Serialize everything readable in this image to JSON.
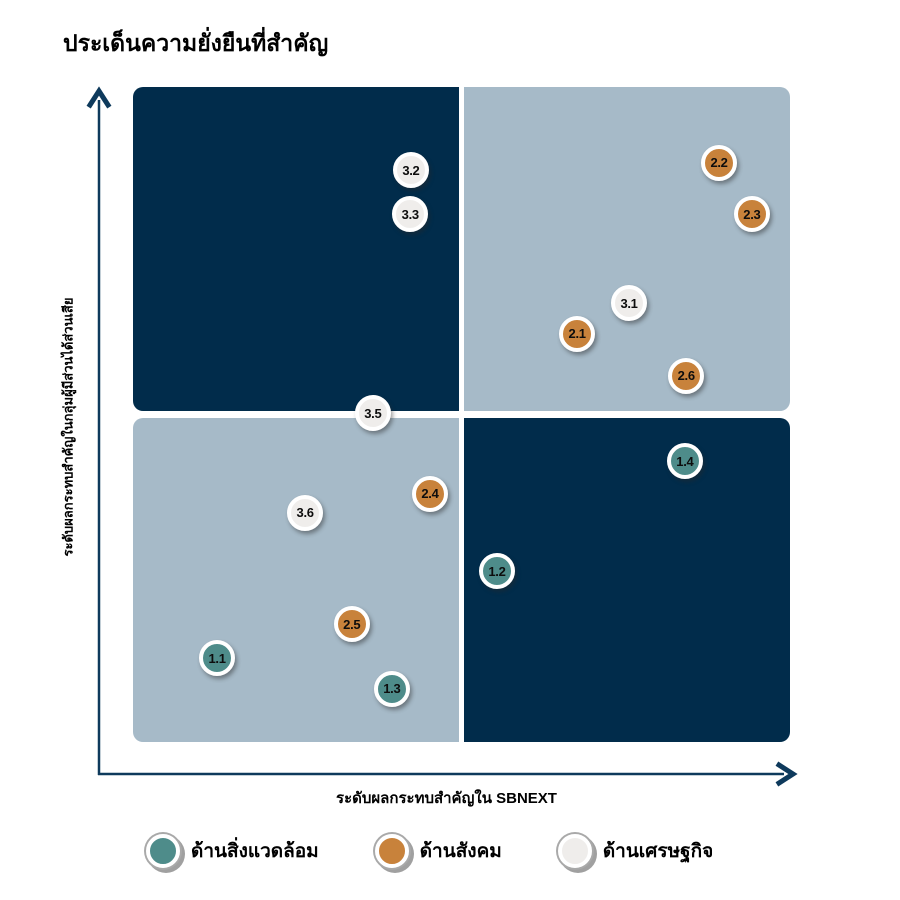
{
  "title": "ประเด็นความยั่งยืนที่สำคัญ",
  "x_axis_label": "ระดับผลกระทบสำคัญใน SBNEXT",
  "y_axis_label": "ระดับผลกระทบสำคัญในกลุ่มผู้มีส่วนได้ส่วนเสีย",
  "colors": {
    "quadrant_dark": "#012c4b",
    "quadrant_light": "#a6bac8",
    "axis": "#0e3a5c",
    "environment": "#4e8c8a",
    "social": "#c8823b",
    "economic": "#efedeb",
    "point_border": "#ffffff",
    "legend_ring": "#a9a9a9"
  },
  "legend": [
    {
      "key": "environment",
      "label": "ด้านสิ่งแวดล้อม"
    },
    {
      "key": "social",
      "label": "ด้านสังคม"
    },
    {
      "key": "economic",
      "label": "ด้านเศรษฐกิจ"
    }
  ],
  "chart_data": {
    "type": "scatter",
    "title": "ประเด็นความยั่งยืนที่สำคัญ",
    "xlabel": "ระดับผลกระทบสำคัญใน SBNEXT",
    "ylabel": "ระดับผลกระทบสำคัญในกลุ่มผู้มีส่วนได้ส่วนเสีย",
    "x_range": [
      0,
      1
    ],
    "y_range": [
      0,
      1
    ],
    "grid": false,
    "legend_position": "bottom",
    "layout": "quadrant-matrix: dark quadrants top-left & bottom-right, light quadrants top-right & bottom-left, no tick labels",
    "series": [
      {
        "name": "ด้านสิ่งแวดล้อม",
        "key": "environment",
        "points": [
          {
            "label": "1.1",
            "x": 0.128,
            "y": 0.128
          },
          {
            "label": "1.2",
            "x": 0.554,
            "y": 0.261
          },
          {
            "label": "1.3",
            "x": 0.394,
            "y": 0.081
          },
          {
            "label": "1.4",
            "x": 0.84,
            "y": 0.429
          }
        ]
      },
      {
        "name": "ด้านสังคม",
        "key": "social",
        "points": [
          {
            "label": "2.1",
            "x": 0.676,
            "y": 0.623
          },
          {
            "label": "2.2",
            "x": 0.892,
            "y": 0.884
          },
          {
            "label": "2.3",
            "x": 0.942,
            "y": 0.806
          },
          {
            "label": "2.4",
            "x": 0.452,
            "y": 0.379
          },
          {
            "label": "2.5",
            "x": 0.333,
            "y": 0.18
          },
          {
            "label": "2.6",
            "x": 0.842,
            "y": 0.559
          }
        ]
      },
      {
        "name": "ด้านเศรษฐกิจ",
        "key": "economic",
        "points": [
          {
            "label": "3.1",
            "x": 0.755,
            "y": 0.67
          },
          {
            "label": "3.2",
            "x": 0.423,
            "y": 0.873
          },
          {
            "label": "3.3",
            "x": 0.422,
            "y": 0.806
          },
          {
            "label": "3.5",
            "x": 0.365,
            "y": 0.502
          },
          {
            "label": "3.6",
            "x": 0.262,
            "y": 0.35
          }
        ]
      }
    ]
  }
}
